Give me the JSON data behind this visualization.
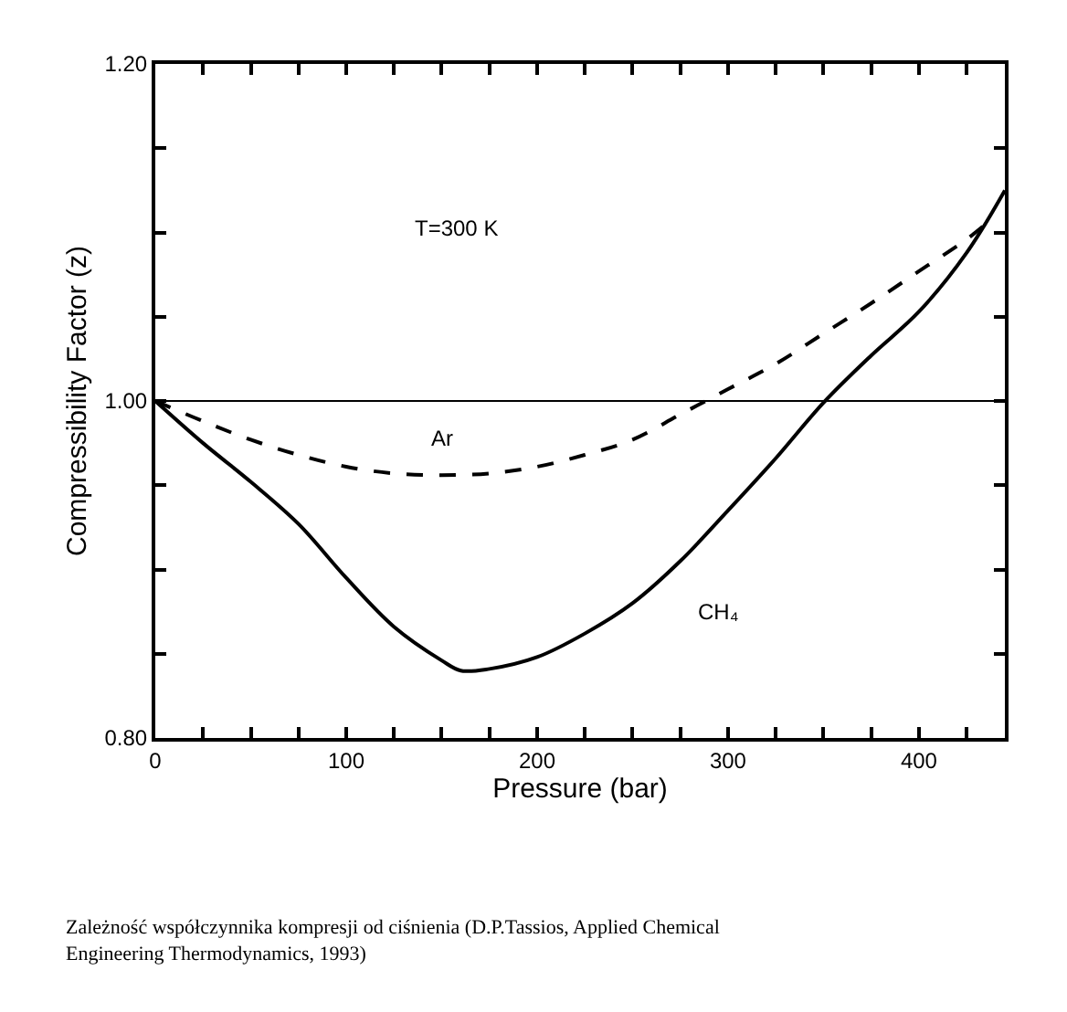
{
  "chart_data": {
    "type": "line",
    "xlabel": "Pressure (bar)",
    "ylabel": "Compressibility Factor (z)",
    "xlim": [
      0,
      445
    ],
    "ylim": [
      0.8,
      1.2
    ],
    "xticks": [
      0,
      {
        "value": 25,
        "label": null
      },
      {
        "value": 50,
        "label": null
      },
      {
        "value": 75,
        "label": null
      },
      100,
      {
        "value": 125,
        "label": null
      },
      {
        "value": 150,
        "label": null
      },
      {
        "value": 175,
        "label": null
      },
      200,
      {
        "value": 225,
        "label": null
      },
      {
        "value": 250,
        "label": null
      },
      {
        "value": 275,
        "label": null
      },
      300,
      {
        "value": 325,
        "label": null
      },
      {
        "value": 350,
        "label": null
      },
      {
        "value": 375,
        "label": null
      },
      400,
      {
        "value": 425,
        "label": null
      }
    ],
    "yticks": [
      {
        "value": 0.8,
        "label": "0.80"
      },
      {
        "value": 0.85,
        "label": null
      },
      {
        "value": 0.9,
        "label": null
      },
      {
        "value": 0.95,
        "label": null
      },
      {
        "value": 1.0,
        "label": "1.00"
      },
      {
        "value": 1.05,
        "label": null
      },
      {
        "value": 1.1,
        "label": null
      },
      {
        "value": 1.15,
        "label": null
      },
      {
        "value": 1.2,
        "label": "1.20"
      }
    ],
    "legend": false,
    "marker": "none",
    "series": [
      {
        "name": "Ar",
        "color": "#000000",
        "line_style": "dashed",
        "x": [
          0,
          25,
          50,
          75,
          100,
          125,
          150,
          175,
          200,
          225,
          250,
          275,
          300,
          325,
          350,
          375,
          400,
          425,
          435
        ],
        "values": [
          1.0,
          0.988,
          0.977,
          0.968,
          0.961,
          0.957,
          0.956,
          0.957,
          0.961,
          0.968,
          0.977,
          0.992,
          1.007,
          1.022,
          1.04,
          1.058,
          1.077,
          1.096,
          1.105
        ]
      },
      {
        "name": "CH₄",
        "color": "#000000",
        "line_style": "solid",
        "x": [
          0,
          25,
          50,
          75,
          100,
          125,
          150,
          160,
          175,
          200,
          225,
          250,
          275,
          300,
          325,
          350,
          375,
          400,
          425,
          445
        ],
        "values": [
          1.0,
          0.975,
          0.952,
          0.927,
          0.895,
          0.866,
          0.846,
          0.84,
          0.841,
          0.848,
          0.862,
          0.88,
          0.905,
          0.935,
          0.966,
          0.999,
          1.027,
          1.053,
          1.088,
          1.125
        ]
      }
    ],
    "ref_lines": [
      {
        "axis": "y",
        "value": 1.0,
        "color": "#000000",
        "line_style": "solid"
      }
    ],
    "annotations": [
      "T=300 K",
      "Zależność współczynnika kompresji od ciśnienia (D.P.Tassios, Applied Chemical Engineering Thermodynamics, 1993)"
    ]
  }
}
